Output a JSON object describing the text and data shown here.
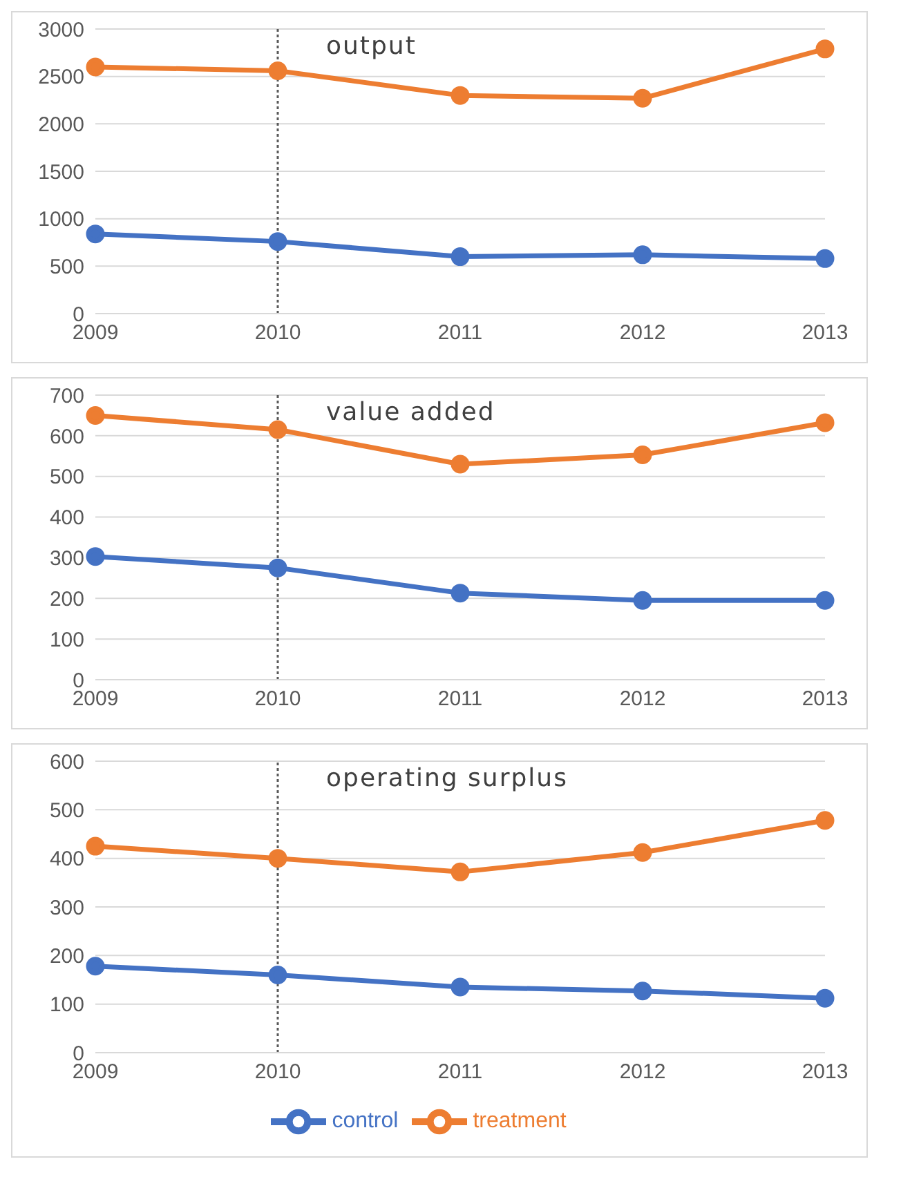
{
  "chart_data": [
    {
      "type": "line",
      "title": "output",
      "categories": [
        "2009",
        "2010",
        "2011",
        "2012",
        "2013"
      ],
      "series": [
        {
          "color": "#4472c4",
          "values": [
            840,
            760,
            600,
            620,
            580
          ]
        },
        {
          "color": "#ed7d31",
          "values": [
            2600,
            2560,
            2300,
            2270,
            2790
          ]
        }
      ],
      "ylim": [
        0,
        3000
      ],
      "yticks": [
        0,
        500,
        1000,
        1500,
        2000,
        2500,
        3000
      ],
      "grid": "y",
      "marker": "circle",
      "legend": false,
      "ref_lines": [
        {
          "axis": "x",
          "value": "2010",
          "color": "#595959",
          "line_style": "dotted"
        }
      ]
    },
    {
      "type": "line",
      "title": "value added",
      "categories": [
        "2009",
        "2010",
        "2011",
        "2012",
        "2013"
      ],
      "series": [
        {
          "color": "#4472c4",
          "values": [
            303,
            275,
            213,
            195,
            195
          ]
        },
        {
          "color": "#ed7d31",
          "values": [
            650,
            615,
            530,
            553,
            632
          ]
        }
      ],
      "ylim": [
        0,
        700
      ],
      "yticks": [
        0,
        100,
        200,
        300,
        400,
        500,
        600,
        700
      ],
      "grid": "y",
      "marker": "circle",
      "legend": false,
      "ref_lines": [
        {
          "axis": "x",
          "value": "2010",
          "color": "#595959",
          "line_style": "dotted"
        }
      ]
    },
    {
      "type": "line",
      "title": "operating surplus",
      "categories": [
        "2009",
        "2010",
        "2011",
        "2012",
        "2013"
      ],
      "series": [
        {
          "name": "control",
          "color": "#4472c4",
          "values": [
            178,
            160,
            135,
            127,
            112
          ]
        },
        {
          "name": "treatment",
          "color": "#ed7d31",
          "values": [
            425,
            400,
            372,
            412,
            478
          ]
        }
      ],
      "ylim": [
        0,
        600
      ],
      "yticks": [
        0,
        100,
        200,
        300,
        400,
        500,
        600
      ],
      "grid": "y",
      "marker": "circle",
      "legend": "bottom",
      "ref_lines": [
        {
          "axis": "x",
          "value": "2010",
          "color": "#595959",
          "line_style": "dotted"
        }
      ]
    }
  ]
}
